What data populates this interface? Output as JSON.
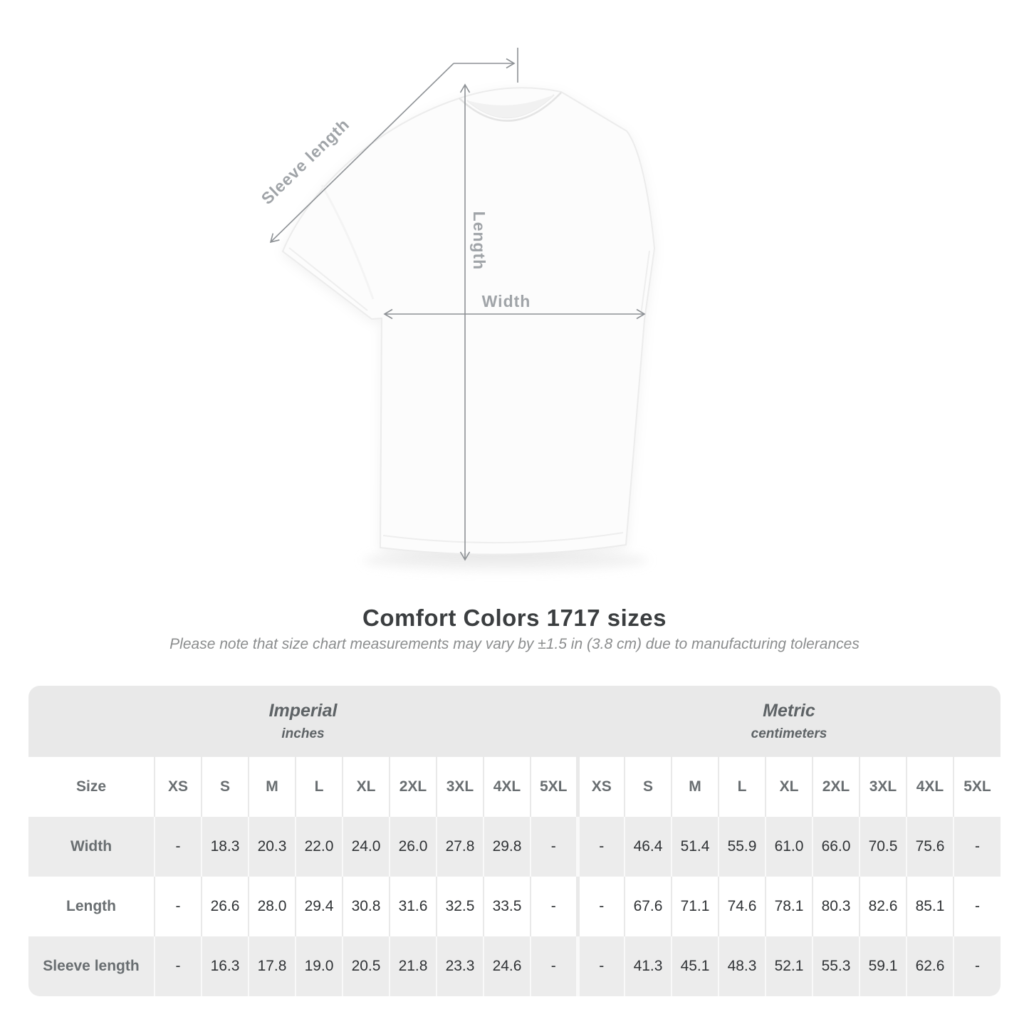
{
  "diagram": {
    "sleeve_length_label": "Sleeve length",
    "length_label": "Length",
    "width_label": "Width"
  },
  "heading": {
    "title": "Comfort Colors 1717 sizes",
    "subtitle": "Please note that size chart measurements may vary by ±1.5 in (3.8 cm) due to manufacturing tolerances"
  },
  "table": {
    "sections": [
      {
        "name": "Imperial",
        "unit": "inches"
      },
      {
        "name": "Metric",
        "unit": "centimeters"
      }
    ],
    "size_header": "Size",
    "sizes": [
      "XS",
      "S",
      "M",
      "L",
      "XL",
      "2XL",
      "3XL",
      "4XL",
      "5XL"
    ],
    "rows": [
      {
        "label": "Width",
        "imperial": [
          "-",
          "18.3",
          "20.3",
          "22.0",
          "24.0",
          "26.0",
          "27.8",
          "29.8",
          "-"
        ],
        "metric": [
          "-",
          "46.4",
          "51.4",
          "55.9",
          "61.0",
          "66.0",
          "70.5",
          "75.6",
          "-"
        ]
      },
      {
        "label": "Length",
        "imperial": [
          "-",
          "26.6",
          "28.0",
          "29.4",
          "30.8",
          "31.6",
          "32.5",
          "33.5",
          "-"
        ],
        "metric": [
          "-",
          "67.6",
          "71.1",
          "74.6",
          "78.1",
          "80.3",
          "82.6",
          "85.1",
          "-"
        ]
      },
      {
        "label": "Sleeve length",
        "imperial": [
          "-",
          "16.3",
          "17.8",
          "19.0",
          "20.5",
          "21.8",
          "23.3",
          "24.6",
          "-"
        ],
        "metric": [
          "-",
          "41.3",
          "45.1",
          "48.3",
          "52.1",
          "55.3",
          "59.1",
          "62.6",
          "-"
        ]
      }
    ]
  },
  "colors": {
    "dimension_line": "#8d9195",
    "dimension_label": "#a0a4a8",
    "title_text": "#3b3e40",
    "subtitle_text": "#8b8d8e",
    "band_background": "#e9e9e9",
    "alt_row_background": "#ececec",
    "header_text": "#696e71",
    "value_text": "#2f3235"
  }
}
